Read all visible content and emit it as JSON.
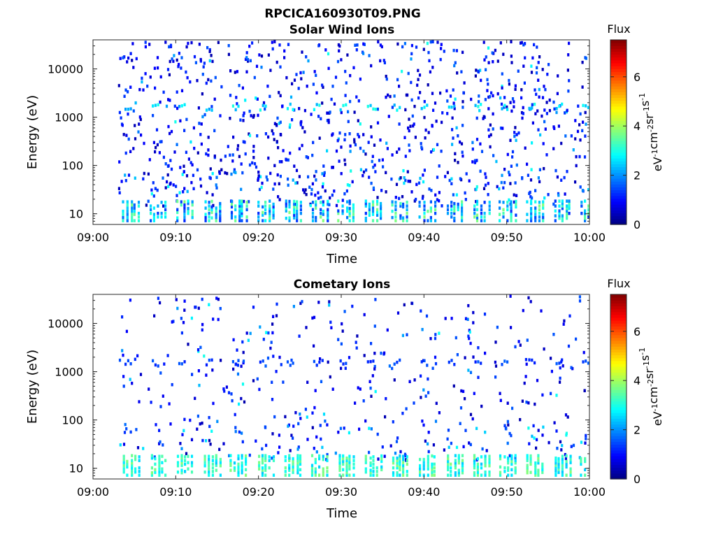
{
  "figure": {
    "title": "RPCICA160930T09.PNG"
  },
  "colorbar": {
    "label": "Flux",
    "units_base": "eV",
    "ticks": [
      "0",
      "2",
      "4",
      "6"
    ],
    "range": [
      0,
      7.5
    ],
    "colormap": "jet"
  },
  "chart_data": [
    {
      "type": "heatmap",
      "title": "Solar Wind Ions",
      "xlabel": "Time",
      "ylabel": "Energy (eV)",
      "x_ticks": [
        "09:00",
        "09:10",
        "09:20",
        "09:30",
        "09:40",
        "09:50",
        "10:00"
      ],
      "x_range_minutes": [
        0,
        60
      ],
      "y_ticks": [
        "10",
        "100",
        "1000",
        "10000"
      ],
      "y_scale": "log",
      "y_range": [
        6,
        40000
      ],
      "sweep_start_minutes": [
        4.1,
        7.4,
        10.6,
        13.9,
        17.1,
        20.4,
        23.7,
        26.9,
        30.1,
        33.4,
        36.6,
        39.9,
        43.2,
        46.4,
        49.6,
        52.9,
        56.2,
        59.4
      ],
      "highlight_energy_eV": 1600,
      "highlight_flux": 2.6,
      "low_energy_band_eV": [
        7,
        20
      ],
      "low_energy_flux": [
        1.2,
        3.8
      ],
      "scatter_flux_typical": 0.8,
      "scatter_density": 1.0
    },
    {
      "type": "heatmap",
      "title": "Cometary Ions",
      "xlabel": "Time",
      "ylabel": "Energy (eV)",
      "x_ticks": [
        "09:00",
        "09:10",
        "09:20",
        "09:30",
        "09:40",
        "09:50",
        "10:00"
      ],
      "x_range_minutes": [
        0,
        60
      ],
      "y_ticks": [
        "10",
        "100",
        "1000",
        "10000"
      ],
      "y_scale": "log",
      "y_range": [
        6,
        40000
      ],
      "sweep_start_minutes": [
        4.1,
        7.4,
        10.6,
        13.9,
        17.1,
        20.4,
        23.7,
        26.9,
        30.1,
        33.4,
        36.6,
        39.9,
        43.2,
        46.4,
        49.6,
        52.9,
        56.2,
        59.4
      ],
      "highlight_energy_eV": 1500,
      "highlight_flux": 1.4,
      "low_energy_band_eV": [
        7,
        20
      ],
      "low_energy_flux": [
        2.4,
        3.8
      ],
      "scatter_flux_typical": 0.8,
      "scatter_density": 0.45
    }
  ]
}
